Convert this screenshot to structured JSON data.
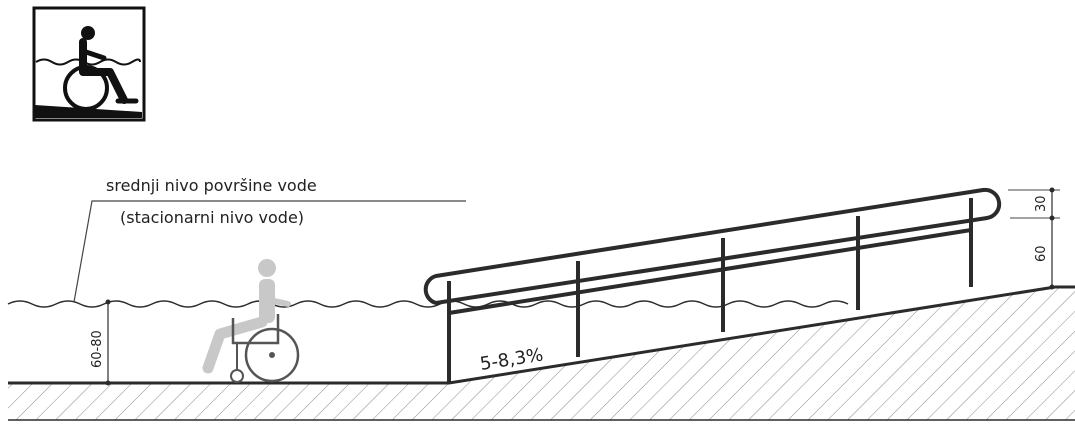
{
  "labels": {
    "water_level_line1": "srednji nivo površine vode",
    "water_level_line2": "(stacionarni nivo vode)",
    "slope": "5-8,3%",
    "depth": "60-80",
    "rail_upper_gap": "30",
    "rail_lower_height": "60"
  },
  "icons": {
    "sign": "wheelchair-access-water-icon",
    "person": "wheelchair-user-figure"
  },
  "colors": {
    "line": "#2b2b2b",
    "hatch": "#8a8a8a",
    "figure": "#c8c8c8"
  }
}
